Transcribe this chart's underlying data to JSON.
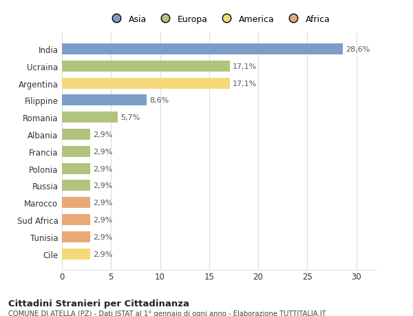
{
  "categories": [
    "India",
    "Ucraina",
    "Argentina",
    "Filippine",
    "Romania",
    "Albania",
    "Francia",
    "Polonia",
    "Russia",
    "Marocco",
    "Sud Africa",
    "Tunisia",
    "Cile"
  ],
  "values": [
    28.6,
    17.1,
    17.1,
    8.6,
    5.7,
    2.9,
    2.9,
    2.9,
    2.9,
    2.9,
    2.9,
    2.9,
    2.9
  ],
  "labels": [
    "28,6%",
    "17,1%",
    "17,1%",
    "8,6%",
    "5,7%",
    "2,9%",
    "2,9%",
    "2,9%",
    "2,9%",
    "2,9%",
    "2,9%",
    "2,9%",
    "2,9%"
  ],
  "colors": [
    "#7b9dc7",
    "#b0c47e",
    "#f5d87a",
    "#7b9dc7",
    "#b0c47e",
    "#b0c47e",
    "#b0c47e",
    "#b0c47e",
    "#b0c47e",
    "#e8a878",
    "#e8a878",
    "#e8a878",
    "#f5d87a"
  ],
  "legend_labels": [
    "Asia",
    "Europa",
    "America",
    "Africa"
  ],
  "legend_colors": [
    "#7b9dc7",
    "#b0c47e",
    "#f5d87a",
    "#e8a878"
  ],
  "title": "Cittadini Stranieri per Cittadinanza",
  "subtitle": "COMUNE DI ATELLA (PZ) - Dati ISTAT al 1° gennaio di ogni anno - Elaborazione TUTTITALIA.IT",
  "xlim": [
    0,
    32
  ],
  "xticks": [
    0,
    5,
    10,
    15,
    20,
    25,
    30
  ],
  "background_color": "#ffffff",
  "label_color": "#555555",
  "grid_color": "#dddddd"
}
